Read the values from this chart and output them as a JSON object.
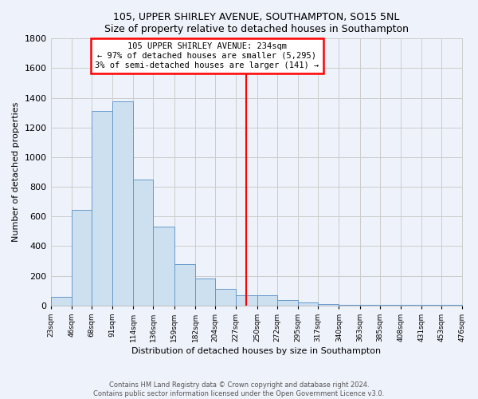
{
  "title": "105, UPPER SHIRLEY AVENUE, SOUTHAMPTON, SO15 5NL",
  "subtitle": "Size of property relative to detached houses in Southampton",
  "xlabel": "Distribution of detached houses by size in Southampton",
  "ylabel": "Number of detached properties",
  "bar_color": "#cce0f0",
  "bar_edge_color": "#6699cc",
  "vline_x": 238.5,
  "vline_color": "red",
  "annotation_title": "105 UPPER SHIRLEY AVENUE: 234sqm",
  "annotation_line1": "← 97% of detached houses are smaller (5,295)",
  "annotation_line2": "3% of semi-detached houses are larger (141) →",
  "annotation_box_color": "white",
  "annotation_box_edge": "red",
  "footer_line1": "Contains HM Land Registry data © Crown copyright and database right 2024.",
  "footer_line2": "Contains public sector information licensed under the Open Government Licence v3.0.",
  "bin_edges": [
    23,
    46,
    68,
    91,
    114,
    136,
    159,
    182,
    204,
    227,
    250,
    272,
    295,
    317,
    340,
    363,
    385,
    408,
    431,
    453,
    476
  ],
  "bin_heights": [
    55,
    645,
    1310,
    1375,
    850,
    530,
    280,
    180,
    110,
    70,
    70,
    35,
    20,
    10,
    5,
    3,
    2,
    1,
    1,
    1
  ],
  "ylim": [
    0,
    1800
  ],
  "yticks": [
    0,
    200,
    400,
    600,
    800,
    1000,
    1200,
    1400,
    1600,
    1800
  ],
  "bg_color": "#eef2fa",
  "grid_color": "#cccccc"
}
